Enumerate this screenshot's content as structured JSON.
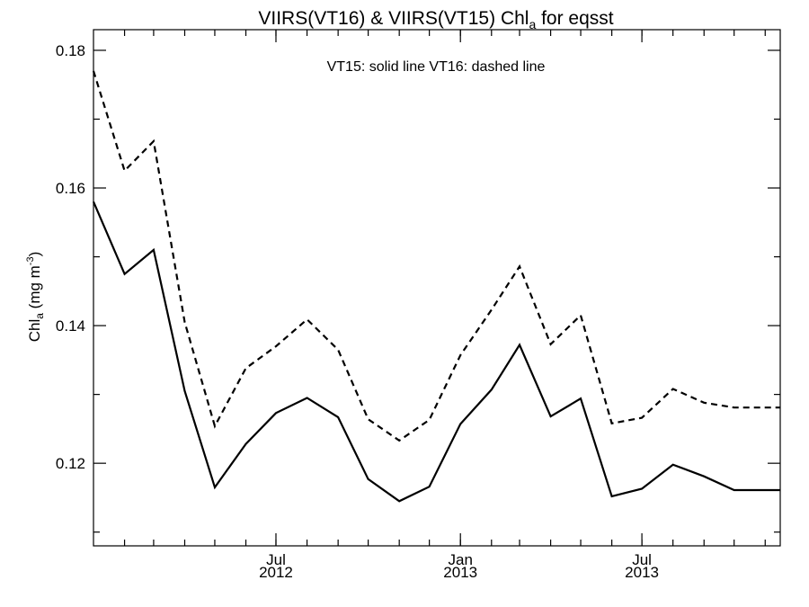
{
  "chart_data": {
    "type": "line",
    "title": {
      "main": "VIIRS(VT16) & VIIRS(VT15)  Chl",
      "subscript": "a",
      "suffix": " for eqsst"
    },
    "annotation": "VT15: solid line   VT16: dashed line",
    "ylabel": {
      "main": "Chl",
      "subscript": "a",
      "unit_prefix": " (mg m",
      "unit_superscript": "-3",
      "unit_suffix": ")"
    },
    "xlabel": "",
    "x_range": [
      "2012-01-01",
      "2013-11-16"
    ],
    "ylim": [
      0.108,
      0.183
    ],
    "y_major_ticks": [
      {
        "value": 0.12,
        "label": "0.12"
      },
      {
        "value": 0.14,
        "label": "0.14"
      },
      {
        "value": 0.16,
        "label": "0.16"
      },
      {
        "value": 0.18,
        "label": "0.18"
      }
    ],
    "y_minor_ticks": [
      0.11,
      0.13,
      0.15,
      0.17
    ],
    "x_month_ticks": [
      "2012-02-01",
      "2012-03-01",
      "2012-04-01",
      "2012-05-01",
      "2012-06-01",
      "2012-07-01",
      "2012-08-01",
      "2012-09-01",
      "2012-10-01",
      "2012-11-01",
      "2012-12-01",
      "2013-01-01",
      "2013-02-01",
      "2013-03-01",
      "2013-04-01",
      "2013-05-01",
      "2013-06-01",
      "2013-07-01",
      "2013-08-01",
      "2013-09-01",
      "2013-10-01",
      "2013-11-01"
    ],
    "x_major_ticks": [
      {
        "date": "2012-07-01",
        "label": "Jul",
        "year": "2012"
      },
      {
        "date": "2013-01-01",
        "label": "Jan",
        "year": "2013"
      },
      {
        "date": "2013-07-01",
        "label": "Jul",
        "year": "2013"
      }
    ],
    "series": [
      {
        "name": "VT15",
        "style": "solid",
        "x": [
          "2012-01-01",
          "2012-02-01",
          "2012-03-01",
          "2012-04-01",
          "2012-05-01",
          "2012-06-01",
          "2012-07-01",
          "2012-08-01",
          "2012-09-01",
          "2012-10-01",
          "2012-11-01",
          "2012-12-01",
          "2013-01-01",
          "2013-02-01",
          "2013-03-01",
          "2013-04-01",
          "2013-05-01",
          "2013-06-01",
          "2013-07-01",
          "2013-08-01",
          "2013-09-01",
          "2013-10-01",
          "2013-11-16"
        ],
        "values": [
          0.158,
          0.1475,
          0.151,
          0.1305,
          0.1165,
          0.1228,
          0.1273,
          0.1295,
          0.1267,
          0.1177,
          0.1145,
          0.1166,
          0.1257,
          0.1307,
          0.1372,
          0.1268,
          0.1294,
          0.1152,
          0.1163,
          0.1198,
          0.1181,
          0.1161,
          0.1161
        ]
      },
      {
        "name": "VT16",
        "style": "dashed",
        "x": [
          "2012-01-01",
          "2012-02-01",
          "2012-03-01",
          "2012-04-01",
          "2012-05-01",
          "2012-06-01",
          "2012-07-01",
          "2012-08-01",
          "2012-09-01",
          "2012-10-01",
          "2012-11-01",
          "2012-12-01",
          "2013-01-01",
          "2013-02-01",
          "2013-03-01",
          "2013-04-01",
          "2013-05-01",
          "2013-06-01",
          "2013-07-01",
          "2013-08-01",
          "2013-09-01",
          "2013-10-01",
          "2013-11-16"
        ],
        "values": [
          0.177,
          0.1625,
          0.1668,
          0.1405,
          0.1254,
          0.1338,
          0.137,
          0.1409,
          0.1365,
          0.1264,
          0.1233,
          0.1263,
          0.1357,
          0.1423,
          0.1486,
          0.1373,
          0.1415,
          0.1258,
          0.1266,
          0.1308,
          0.1288,
          0.1281,
          0.1281
        ]
      }
    ]
  }
}
